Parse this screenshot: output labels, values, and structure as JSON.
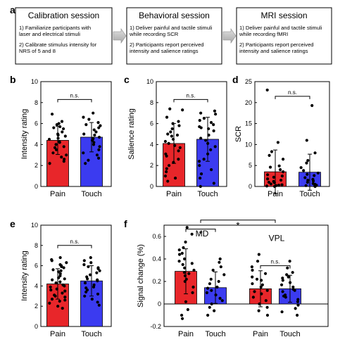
{
  "panel_a": {
    "label": "a",
    "sessions": [
      {
        "title": "Calibration session",
        "lines": [
          "1) Familiarize participants with",
          "laser and electrical stimuli",
          "",
          "2) Calibrate stimulus intensity for",
          "NRS of 5 and 8"
        ]
      },
      {
        "title": "Behavioral session",
        "lines": [
          "1) Deliver painful and tactile stimuli",
          "while recording SCR",
          "",
          "2) Participants report perceived",
          "intensity and salience ratings"
        ]
      },
      {
        "title": "MRI session",
        "lines": [
          "1) Deliver painful and tactile stimuli",
          "while recording fMRI",
          "",
          "2) Participants report perceived",
          "intensity and salience ratings"
        ]
      }
    ]
  },
  "colors": {
    "pain": "#e8262a",
    "touch": "#3b3bf0"
  },
  "chart_data": [
    {
      "id": "b",
      "label": "b",
      "type": "bar",
      "categories": [
        "Pain",
        "Touch"
      ],
      "values": [
        4.4,
        4.7
      ],
      "err": [
        1.35,
        1.4
      ],
      "ylabel": "Intensity rating",
      "ylim": [
        0,
        10
      ],
      "yticks": [
        0,
        2,
        4,
        6,
        8,
        10
      ],
      "comparisons": [
        {
          "from": 0,
          "to": 1,
          "y": 8.3,
          "label": "n.s."
        }
      ],
      "points": [
        [
          6.9,
          6.2,
          6.0,
          5.9,
          5.6,
          5.5,
          5.2,
          5.0,
          4.9,
          4.6,
          4.5,
          4.3,
          4.2,
          4.0,
          3.8,
          3.7,
          3.5,
          3.2,
          3.0,
          2.8,
          2.6,
          2.4,
          2.2,
          5.7,
          4.8
        ],
        [
          7.0,
          6.6,
          6.4,
          6.1,
          5.9,
          5.6,
          5.4,
          5.2,
          5.0,
          4.9,
          4.7,
          4.5,
          4.4,
          4.2,
          4.0,
          3.8,
          3.5,
          3.2,
          3.0,
          2.7,
          2.5,
          2.2,
          5.8,
          4.6
        ]
      ]
    },
    {
      "id": "c",
      "label": "c",
      "type": "bar",
      "categories": [
        "Pain",
        "Touch"
      ],
      "values": [
        4.1,
        4.5
      ],
      "err": [
        1.9,
        2.1
      ],
      "ylabel": "Salience rating",
      "ylim": [
        0,
        10
      ],
      "yticks": [
        0,
        2,
        4,
        6,
        8,
        10
      ],
      "comparisons": [
        {
          "from": 0,
          "to": 1,
          "y": 8.3,
          "label": "n.s."
        }
      ],
      "points": [
        [
          7.4,
          7.3,
          6.6,
          6.0,
          5.8,
          5.5,
          5.2,
          5.0,
          4.8,
          4.5,
          4.3,
          4.1,
          3.9,
          3.7,
          3.4,
          3.1,
          2.9,
          2.6,
          2.3,
          2.0,
          1.7,
          1.4,
          1.0,
          0.8,
          0.5,
          6.2,
          4.9
        ],
        [
          7.2,
          7.0,
          6.9,
          6.5,
          6.3,
          6.1,
          5.9,
          5.7,
          5.5,
          5.3,
          4.9,
          4.6,
          4.4,
          4.1,
          3.8,
          3.5,
          3.1,
          2.6,
          2.4,
          2.0,
          1.6,
          1.2,
          0.8,
          0.3,
          0.0,
          5.6
        ]
      ]
    },
    {
      "id": "d",
      "label": "d",
      "type": "bar",
      "categories": [
        "Pain",
        "Touch"
      ],
      "values": [
        3.5,
        3.4
      ],
      "err": [
        5.2,
        4.3
      ],
      "ylabel": "SCR",
      "ylim": [
        0,
        25
      ],
      "yticks": [
        0,
        5,
        10,
        15,
        20,
        25
      ],
      "comparisons": [
        {
          "from": 0,
          "to": 1,
          "y": 21.5,
          "label": "n.s."
        }
      ],
      "points": [
        [
          23.0,
          10.5,
          8.3,
          7.4,
          6.5,
          4.9,
          4.6,
          4.0,
          3.5,
          2.8,
          2.2,
          1.8,
          1.5,
          1.2,
          0.9,
          0.6,
          0.4,
          0.2,
          0.1,
          0.0,
          0.3,
          1.0,
          2.5
        ],
        [
          19.3,
          11.0,
          8.0,
          6.2,
          5.6,
          4.5,
          3.8,
          3.2,
          2.6,
          2.1,
          1.7,
          1.3,
          1.0,
          0.7,
          0.5,
          0.3,
          0.1,
          0.0,
          0.2,
          1.5,
          2.9
        ]
      ]
    },
    {
      "id": "e",
      "label": "e",
      "type": "bar",
      "categories": [
        "Pain",
        "Touch"
      ],
      "values": [
        4.2,
        4.5
      ],
      "err": [
        1.5,
        1.5
      ],
      "ylabel": "Intensity rating",
      "ylim": [
        0,
        10
      ],
      "yticks": [
        0,
        2,
        4,
        6,
        8,
        10
      ],
      "comparisons": [
        {
          "from": 0,
          "to": 1,
          "y": 8.0,
          "label": "n.s."
        }
      ],
      "points": [
        [
          6.8,
          6.6,
          6.5,
          6.3,
          6.0,
          5.8,
          5.6,
          5.4,
          5.2,
          5.0,
          4.8,
          4.6,
          4.4,
          4.3,
          4.1,
          3.9,
          3.7,
          3.5,
          3.3,
          3.1,
          2.9,
          2.7,
          2.5,
          2.3,
          2.0,
          1.8,
          6.1,
          5.5,
          4.7,
          4.0,
          3.6,
          3.0,
          2.6,
          5.9
        ],
        [
          6.8,
          6.5,
          6.3,
          6.1,
          5.9,
          5.7,
          5.5,
          5.3,
          5.1,
          4.9,
          4.7,
          4.5,
          4.3,
          4.1,
          3.9,
          3.6,
          3.4,
          3.2,
          3.0,
          2.7,
          2.4,
          2.1,
          5.8,
          4.6,
          3.8
        ]
      ]
    },
    {
      "id": "f",
      "label": "f",
      "type": "bar",
      "categories": [
        "Pain",
        "Touch",
        "Pain",
        "Touch"
      ],
      "groups": [
        "MD",
        "VPL"
      ],
      "values": [
        0.29,
        0.145,
        0.135,
        0.135
      ],
      "err": [
        0.2,
        0.14,
        0.16,
        0.12
      ],
      "ylabel": "Signal change (%)",
      "ylim": [
        -0.2,
        0.7
      ],
      "yticks": [
        -0.2,
        0,
        0.2,
        0.4,
        0.6
      ],
      "comparisons": [
        {
          "from": 0,
          "to": 1,
          "y": 0.665,
          "label": "*"
        },
        {
          "from": 0.5,
          "to": 2.5,
          "y": 0.745,
          "label": "*"
        },
        {
          "from": 2,
          "to": 3,
          "y": 0.34,
          "label": "n.s."
        }
      ],
      "points": [
        [
          0.68,
          0.62,
          0.55,
          0.5,
          0.48,
          0.44,
          0.4,
          0.38,
          0.35,
          0.32,
          0.3,
          0.28,
          0.25,
          0.22,
          0.2,
          0.15,
          0.1,
          0.02,
          -0.05,
          -0.1,
          -0.13,
          0.45,
          0.36,
          0.27
        ],
        [
          0.4,
          0.37,
          0.33,
          0.3,
          0.26,
          0.22,
          0.18,
          0.15,
          0.12,
          0.1,
          0.08,
          0.05,
          0.03,
          0.0,
          -0.03,
          -0.06,
          -0.1,
          0.2,
          0.14
        ],
        [
          0.44,
          0.38,
          0.33,
          0.3,
          0.27,
          0.24,
          0.21,
          0.18,
          0.15,
          0.12,
          0.09,
          0.06,
          0.03,
          0.0,
          -0.03,
          -0.06,
          -0.1,
          0.22,
          0.17,
          0.11
        ],
        [
          0.38,
          0.32,
          0.28,
          0.26,
          0.24,
          0.21,
          0.19,
          0.17,
          0.15,
          0.13,
          0.11,
          0.08,
          0.06,
          0.04,
          0.02,
          -0.01,
          -0.04,
          -0.07,
          -0.1,
          0.23,
          0.12,
          0.07
        ]
      ]
    }
  ]
}
